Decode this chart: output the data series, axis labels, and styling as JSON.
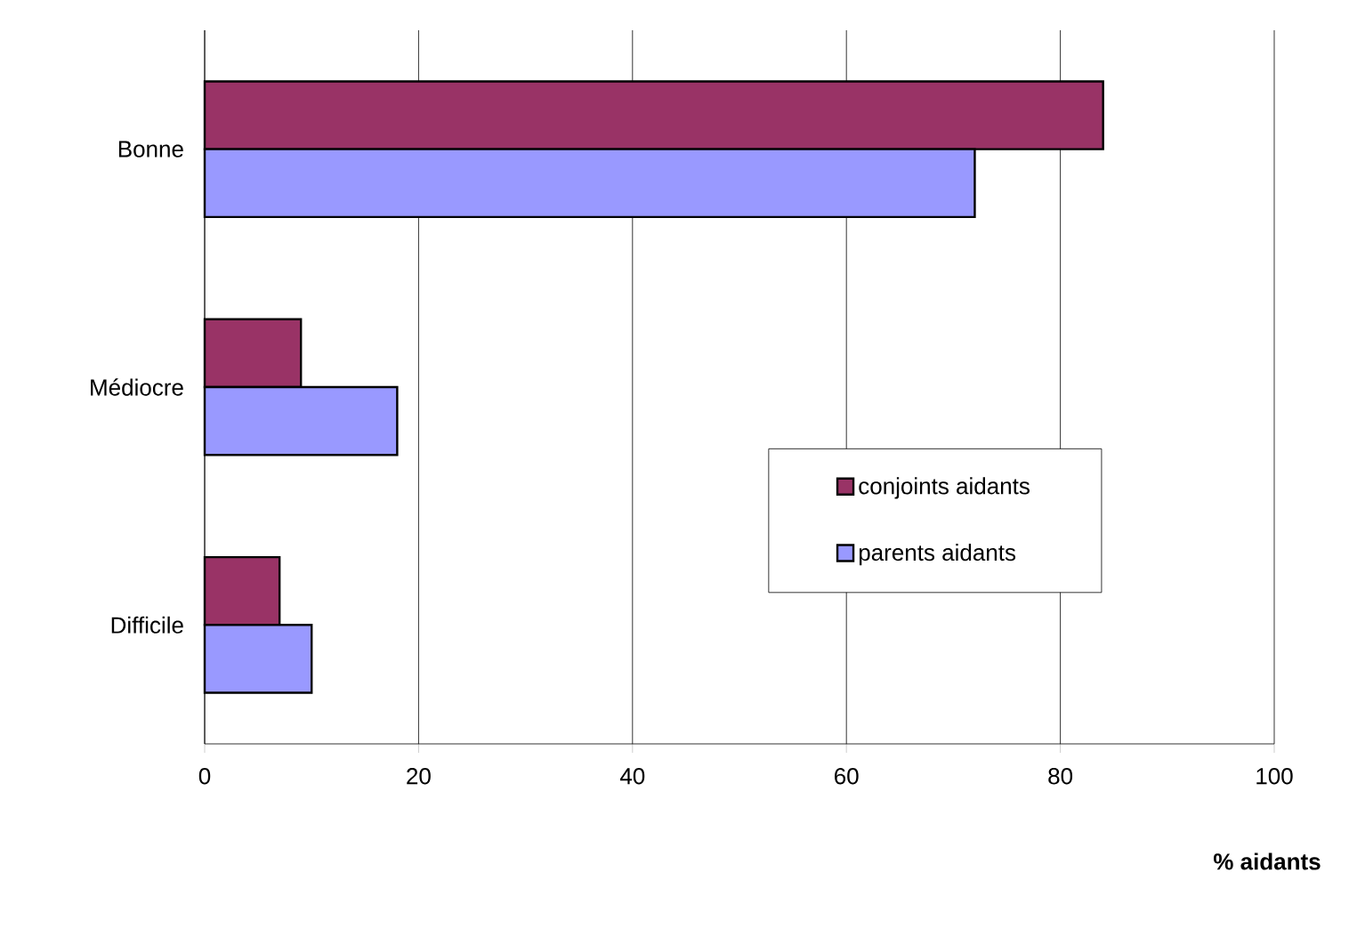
{
  "chart_data": {
    "type": "bar",
    "orientation": "horizontal",
    "xlabel": "% aidants",
    "categories": [
      "Bonne",
      "Médiocre",
      "Difficile"
    ],
    "series": [
      {
        "name": "conjoints aidants",
        "color": "#993366",
        "values": [
          84,
          9,
          7
        ]
      },
      {
        "name": "parents aidants",
        "color": "#9999ff",
        "values": [
          72,
          18,
          10
        ]
      }
    ],
    "xlim": [
      0,
      100
    ],
    "xticks": [
      0,
      20,
      40,
      60,
      80,
      100
    ],
    "grid": "x",
    "legend": "bottom right"
  }
}
